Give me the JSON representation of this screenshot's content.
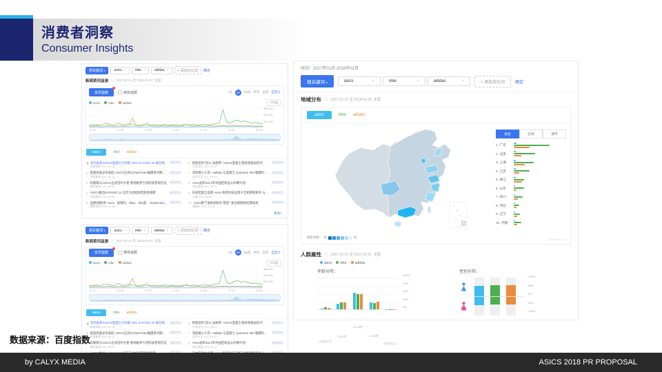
{
  "slide": {
    "title_zh": "消费者洞察",
    "title_en": "Consumer Insights",
    "source_note": "数据来源：百度指数",
    "footer_left": "by CALYX MEDIA",
    "footer_right": "ASICS 2018 PR PROPOSAL"
  },
  "icons": {
    "close": "×",
    "info": "ⓘ",
    "caret": "▾",
    "dot": "●"
  },
  "colors": {
    "navy": "#1b2570",
    "cyan": "#2bb3e8",
    "baidu_blue": "#3b76ef",
    "series": {
      "asics": "#3fbcf0",
      "nike": "#4cb050",
      "adidas": "#ea8c3c"
    },
    "map_high": "#22b4f2"
  },
  "keywords": [
    "asics",
    "nike",
    "adidas"
  ],
  "search_bar": {
    "button": "搜关键词",
    "add_compare": "+ 添加对比词",
    "confirm": "确定"
  },
  "left_panel": {
    "section_title": "新闻资讯监测",
    "date_range": "2017-01-01 至 2018-01-07",
    "scope": "全国",
    "index_button": "资讯指数",
    "media_checkbox": "媒体指数",
    "periods": [
      "7天",
      "30天",
      "90天",
      "半年",
      "全年",
      "自定义"
    ],
    "selected_period": "30天",
    "avg_label": "平均值",
    "more_link": "更多>",
    "view_trend": "查看趋势"
  },
  "right_panel": {
    "time_label": "时间：2017年01月-2018年01月",
    "region": {
      "title": "地域分布",
      "date_range": "2017-01-01 至 2018-01-08",
      "scope": "全国",
      "rank_tabs": [
        "省份",
        "区域",
        "城市"
      ],
      "legend_label": "搜索指数：",
      "legend_high": "高",
      "legend_low": "低",
      "legend_colors": [
        "#0f6fc0",
        "#2a8fd8",
        "#55aee6",
        "#86c6ee",
        "#b7dcf5",
        "#e0f0fb"
      ],
      "inset_label": "南海诸岛",
      "watermark": "index.baidu.com"
    },
    "demographic": {
      "title": "人群属性",
      "date_range": "2017-01-01 至 2017-12-31",
      "scope": "全国",
      "age_title": "年龄分布：",
      "gender_title": "性别分布："
    }
  },
  "news": [
    {
      "title": "年内发布!ASICS亚瑟士大热款 GEL-KAYANO 24 联名限定款回顾",
      "meta": "新浪体育 2017-07-18"
    },
    {
      "title": "疾速装备竞争再起 ASICS正式以FlyteFoam缓震系列跑鞋抢占中端“跑道”",
      "meta": "界面新闻 2017-09-12"
    },
    {
      "title": "科勒斯与ASICS正式签约大使 落地跑步行进阶段营销见证",
      "meta": "腾讯体育 2017-05-03"
    },
    {
      "title": "ASICS推出KAYANO 24 北京马拉松限定配色跑鞋",
      "meta": "新浪跑步 2017-09-20"
    },
    {
      "title": "品牌观察|用 Asics、安德玛、Nike、361度、Jordan Brand 看跑鞋市场",
      "meta": "懒熊体育 2017-10-26"
    },
    {
      "title": "频频造势“双11 战绩单” ASICS亚瑟士电商增速居前列",
      "meta": "亿邦动力 2017-11-13"
    },
    {
      "title": "深陷缠斗三年—adidas 与亚瑟士 Quantum 360 缓震科技 主打潮流轻量化",
      "meta": "虎扑识货 2017-08-01"
    },
    {
      "title": "Asics发布2017年中国区新品公开赛计划",
      "meta": "体坛周报 2017-03-15"
    },
    {
      "title": "日本亚瑟士品牌 Asics 将黑科技应用于全新跑鞋系列 与新百伦正面竞争",
      "meta": "36氪 2017-06-09"
    },
    {
      "title": "Asics旗下鬼冢虎联名“限定” 复古跑鞋款经典再现",
      "meta": "潮流志 2017-12-08"
    }
  ],
  "chart_data": [
    {
      "id": "trend",
      "type": "line",
      "title": "新闻资讯监测 资讯指数趋势",
      "xlabel": "",
      "ylabel": "资讯指数",
      "ylim": [
        0,
        960000
      ],
      "y_ticks": [
        "960,000",
        "640,000",
        "320,000"
      ],
      "x_ticks": [
        "17-01",
        "17-03",
        "17-05",
        "17-07",
        "17-09",
        "17-11",
        "18-01"
      ],
      "legend_position": "top-left",
      "grid": true,
      "series": [
        {
          "name": "asics",
          "values": [
            3,
            3,
            4,
            3,
            3,
            4,
            4,
            3,
            3,
            4,
            4,
            3,
            4,
            4,
            3,
            3,
            4,
            4,
            3,
            3,
            4,
            3,
            4,
            4,
            3,
            4,
            4,
            3,
            3,
            4,
            4,
            3,
            4,
            4,
            3,
            4,
            5,
            6,
            5,
            4,
            5,
            5,
            4,
            4,
            5,
            4,
            4,
            4,
            4
          ]
        },
        {
          "name": "nike",
          "values": [
            14,
            12,
            16,
            13,
            18,
            22,
            15,
            13,
            24,
            16,
            14,
            20,
            15,
            13,
            12,
            16,
            14,
            13,
            15,
            12,
            14,
            16,
            13,
            15,
            14,
            12,
            15,
            13,
            14,
            16,
            13,
            15,
            18,
            14,
            16,
            20,
            24,
            95,
            30,
            22,
            34,
            40,
            30,
            36,
            28,
            24,
            26,
            22,
            20
          ]
        },
        {
          "name": "adidas",
          "values": [
            8,
            7,
            9,
            8,
            7,
            10,
            8,
            7,
            9,
            8,
            7,
            9,
            52,
            10,
            8,
            9,
            26,
            9,
            8,
            7,
            9,
            8,
            7,
            9,
            8,
            7,
            9,
            20,
            8,
            7,
            9,
            8,
            7,
            9,
            8,
            7,
            9,
            10,
            9,
            8,
            9,
            10,
            9,
            8,
            9,
            8,
            7,
            8,
            7
          ]
        }
      ]
    },
    {
      "id": "region_rank",
      "type": "bar",
      "title": "地域分布 省份排名",
      "categories": [
        "广东",
        "北京",
        "上海",
        "江苏",
        "浙江",
        "山东",
        "四川",
        "河北",
        "辽宁",
        "河南"
      ],
      "series": [
        {
          "name": "asics",
          "values": [
            8,
            6,
            6,
            5,
            5,
            4,
            4,
            3,
            3,
            3
          ]
        },
        {
          "name": "nike",
          "values": [
            100,
            60,
            55,
            45,
            28,
            28,
            25,
            15,
            18,
            22
          ]
        },
        {
          "name": "adidas",
          "values": [
            45,
            22,
            30,
            15,
            24,
            8,
            12,
            8,
            10,
            10
          ]
        }
      ]
    },
    {
      "id": "age",
      "type": "bar",
      "title": "年龄分布",
      "categories": [
        "19岁及以下",
        "20-29岁",
        "30-39岁",
        "40-49岁",
        "50岁及以上"
      ],
      "ylim": [
        0,
        100
      ],
      "y_ticks": [
        "100%",
        "75%",
        "50%",
        "25%",
        "0%"
      ],
      "series": [
        {
          "name": "asics",
          "values": [
            2,
            17,
            52,
            21,
            1
          ]
        },
        {
          "name": "nike",
          "values": [
            7,
            21,
            48,
            20,
            1
          ]
        },
        {
          "name": "adidas",
          "values": [
            5,
            21,
            49,
            23,
            1
          ]
        }
      ]
    },
    {
      "id": "gender",
      "type": "bar",
      "title": "性别分布",
      "categories": [
        "男",
        "女"
      ],
      "ylim": [
        0,
        100
      ],
      "y_ticks": [
        "100%",
        "50%",
        "0%",
        "50%",
        "100%"
      ],
      "series": [
        {
          "name": "asics",
          "values": [
            57,
            43
          ]
        },
        {
          "name": "nike",
          "values": [
            60,
            40
          ]
        },
        {
          "name": "adidas",
          "values": [
            58,
            42
          ]
        }
      ]
    }
  ]
}
